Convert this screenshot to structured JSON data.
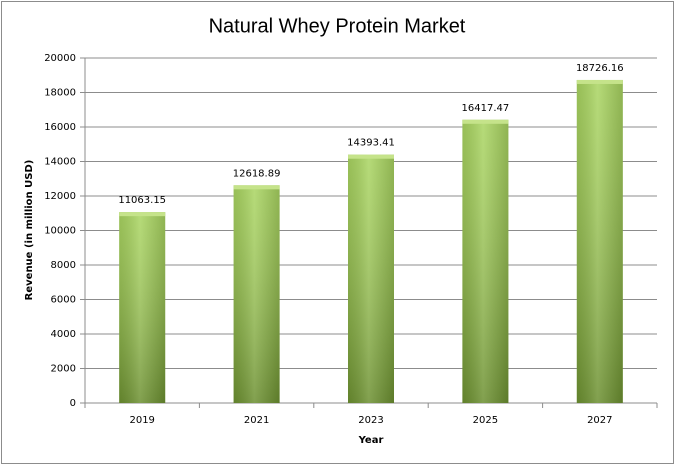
{
  "chart_data": {
    "type": "bar",
    "title": "Natural Whey Protein Market",
    "x_label": "Year",
    "y_label": "Revenue (in million USD)",
    "categories": [
      "2019",
      "2021",
      "2023",
      "2025",
      "2027"
    ],
    "values": [
      11063.15,
      12618.89,
      14393.41,
      16417.47,
      18726.16
    ],
    "color": "#9acd45",
    "ylim": [
      0,
      20000
    ],
    "yticks": [
      0,
      2000,
      4000,
      6000,
      8000,
      10000,
      12000,
      14000,
      16000,
      18000,
      20000
    ],
    "grid": true
  }
}
